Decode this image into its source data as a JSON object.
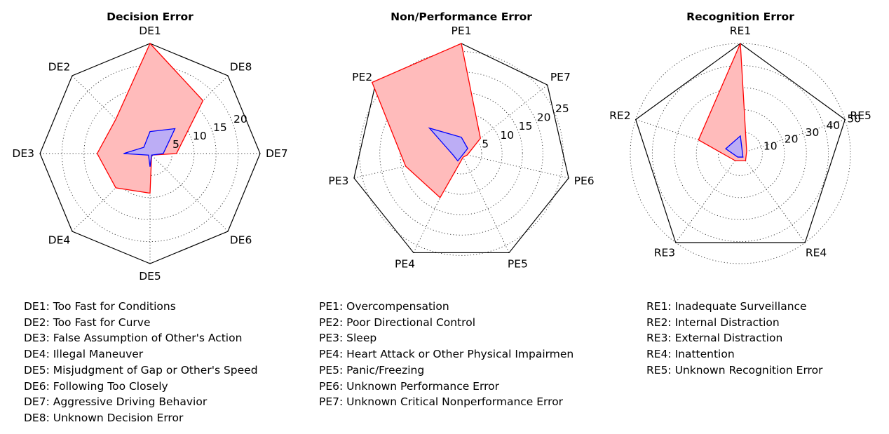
{
  "chart_data": [
    {
      "type": "radar",
      "title": "Decision Error",
      "axes": [
        "DE1",
        "DE8",
        "DE7",
        "DE6",
        "DE5",
        "DE4",
        "DE3",
        "DE2"
      ],
      "rmax": 25,
      "r_ticks": [
        5,
        10,
        15,
        20
      ],
      "grid": true,
      "series": [
        {
          "color": "#ff0000",
          "fill": "#ffbbbb",
          "values": [
            25,
            17,
            6,
            0.5,
            9,
            11,
            12,
            11
          ]
        },
        {
          "color": "#0000ff",
          "fill": "#b0aaff",
          "values": [
            5,
            8,
            3,
            0.5,
            3,
            0.5,
            6,
            2
          ]
        }
      ],
      "legend": [
        "DE1: Too Fast for Conditions",
        "DE2: Too Fast for Curve",
        "DE3: False Assumption of Other's Action",
        "DE4: Illegal Maneuver",
        "DE5: Misjudgment of Gap or Other's Speed",
        "DE6: Following Too Closely",
        "DE7: Aggressive Driving Behavior",
        "DE8: Unknown Decision Error"
      ]
    },
    {
      "type": "radar",
      "title": "Non/Performance Error",
      "axes": [
        "PE1",
        "PE7",
        "PE6",
        "PE5",
        "PE4",
        "PE3",
        "PE2"
      ],
      "rmax": 27,
      "r_ticks": [
        5,
        10,
        15,
        20,
        25
      ],
      "grid": true,
      "series": [
        {
          "color": "#ff0000",
          "fill": "#ffbbbb",
          "values": [
            27,
            6,
            1.5,
            1,
            12,
            14,
            28
          ]
        },
        {
          "color": "#0000ff",
          "fill": "#b0aaff",
          "values": [
            4,
            2,
            0.5,
            0.5,
            2,
            2,
            10
          ]
        }
      ],
      "legend": [
        "PE1: Overcompensation",
        "PE2: Poor Directional Control",
        "PE3: Sleep",
        "PE4: Heart Attack or Other Physical Impairmen",
        "PE5: Panic/Freezing",
        "PE6: Unknown Performance Error",
        "PE7: Unknown Critical Nonperformance Error"
      ]
    },
    {
      "type": "radar",
      "title": "Recognition Error",
      "axes": [
        "RE1",
        "RE5",
        "RE4",
        "RE3",
        "RE2"
      ],
      "rmax": 50,
      "r_ticks": [
        10,
        20,
        30,
        40,
        50
      ],
      "grid": true,
      "series": [
        {
          "color": "#ff0000",
          "fill": "#ffbbbb",
          "values": [
            50,
            3,
            4,
            4,
            20
          ]
        },
        {
          "color": "#0000ff",
          "fill": "#b0aaff",
          "values": [
            8,
            1,
            2,
            2,
            7
          ]
        }
      ],
      "legend": [
        "RE1: Inadequate Surveillance",
        "RE2: Internal Distraction",
        "RE3: External Distraction",
        "RE4: Inattention",
        "RE5: Unknown Recognition Error"
      ]
    }
  ]
}
